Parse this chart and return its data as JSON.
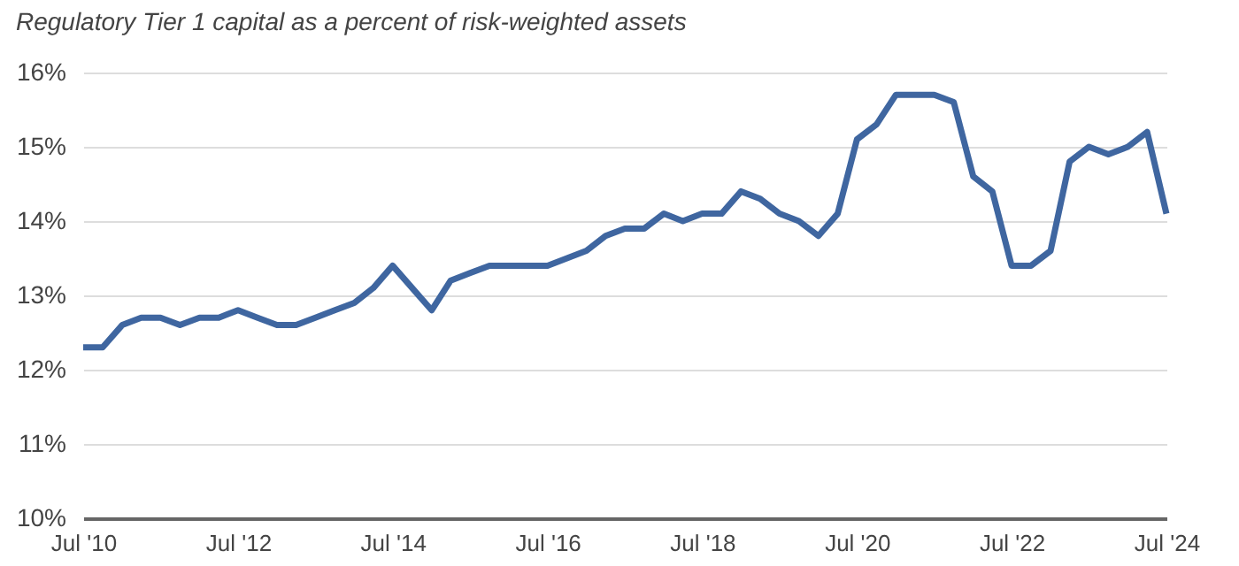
{
  "chart_data": {
    "type": "line",
    "title": "Regulatory Tier 1 capital as a percent of risk-weighted assets",
    "x": [
      "2010-07",
      "2010-10",
      "2011-01",
      "2011-04",
      "2011-07",
      "2011-10",
      "2012-01",
      "2012-04",
      "2012-07",
      "2012-10",
      "2013-01",
      "2013-04",
      "2013-07",
      "2013-10",
      "2014-01",
      "2014-04",
      "2014-07",
      "2014-10",
      "2015-01",
      "2015-04",
      "2015-07",
      "2015-10",
      "2016-01",
      "2016-04",
      "2016-07",
      "2016-10",
      "2017-01",
      "2017-04",
      "2017-07",
      "2017-10",
      "2018-01",
      "2018-04",
      "2018-07",
      "2018-10",
      "2019-01",
      "2019-04",
      "2019-07",
      "2019-10",
      "2020-01",
      "2020-04",
      "2020-07",
      "2020-10",
      "2021-01",
      "2021-04",
      "2021-07",
      "2021-10",
      "2022-01",
      "2022-04",
      "2022-07",
      "2022-10",
      "2023-01",
      "2023-04",
      "2023-07",
      "2023-10",
      "2024-01",
      "2024-04",
      "2024-07"
    ],
    "series": [
      {
        "color": "#3f66a0",
        "values": [
          12.3,
          12.3,
          12.6,
          12.7,
          12.7,
          12.6,
          12.7,
          12.7,
          12.8,
          12.7,
          12.6,
          12.6,
          12.7,
          12.8,
          12.9,
          13.1,
          13.4,
          13.1,
          12.8,
          13.2,
          13.3,
          13.4,
          13.4,
          13.4,
          13.4,
          13.5,
          13.6,
          13.8,
          13.9,
          13.9,
          14.1,
          14.0,
          14.1,
          14.1,
          14.4,
          14.3,
          14.1,
          14.0,
          13.8,
          14.1,
          15.1,
          15.3,
          15.7,
          15.7,
          15.7,
          15.6,
          14.6,
          14.4,
          13.4,
          13.4,
          13.6,
          14.8,
          15.0,
          14.9,
          15.0,
          15.2,
          14.1
        ]
      }
    ],
    "xlim": [
      "2010-07",
      "2024-07"
    ],
    "xticks": [
      {
        "value": "2010-07",
        "label": "Jul '10"
      },
      {
        "value": "2012-07",
        "label": "Jul '12"
      },
      {
        "value": "2014-07",
        "label": "Jul '14"
      },
      {
        "value": "2016-07",
        "label": "Jul '16"
      },
      {
        "value": "2018-07",
        "label": "Jul '18"
      },
      {
        "value": "2020-07",
        "label": "Jul '20"
      },
      {
        "value": "2022-07",
        "label": "Jul '22"
      },
      {
        "value": "2024-07",
        "label": "Jul '24"
      }
    ],
    "ylim": [
      10,
      16
    ],
    "yticks": [
      {
        "value": 10,
        "label": "10%"
      },
      {
        "value": 11,
        "label": "11%"
      },
      {
        "value": 12,
        "label": "12%"
      },
      {
        "value": 13,
        "label": "13%"
      },
      {
        "value": 14,
        "label": "14%"
      },
      {
        "value": 15,
        "label": "15%"
      },
      {
        "value": 16,
        "label": "16%"
      }
    ],
    "grid": "y",
    "marker": "none",
    "line_style": "solid"
  }
}
